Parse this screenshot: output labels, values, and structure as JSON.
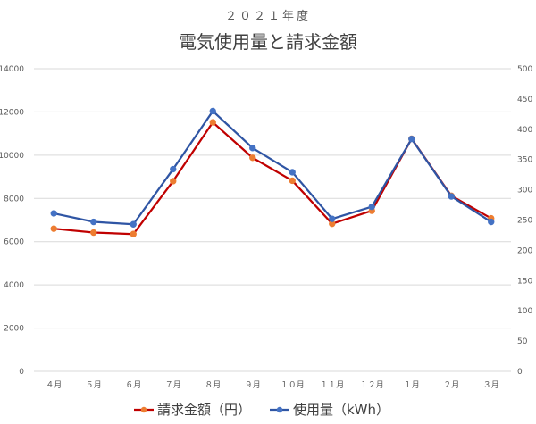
{
  "chart_data": {
    "type": "line",
    "subtitle": "２０２１年度",
    "title": "電気使用量と請求金額",
    "categories": [
      "４月",
      "５月",
      "６月",
      "７月",
      "８月",
      "９月",
      "１０月",
      "１１月",
      "１２月",
      "１月",
      "２月",
      "３月"
    ],
    "series": [
      {
        "name": "請求金額（円）",
        "axis": "left",
        "line_color": "#C00000",
        "marker_color": "#ED7D31",
        "values": [
          6600,
          6420,
          6350,
          8800,
          11520,
          9880,
          8820,
          6830,
          7430,
          10760,
          8120,
          7080
        ]
      },
      {
        "name": "使用量（kWh）",
        "axis": "right",
        "line_color": "#2F55A4",
        "marker_color": "#4472C4",
        "values": [
          261,
          247,
          243,
          334,
          430,
          369,
          329,
          252,
          272,
          384,
          289,
          247
        ]
      }
    ],
    "y_left": {
      "min": 0,
      "max": 14000,
      "step": 2000,
      "ticks": [
        "0",
        "2000",
        "4000",
        "6000",
        "8000",
        "10000",
        "12000",
        "14000"
      ]
    },
    "y_right": {
      "min": 0,
      "max": 500,
      "step": 50,
      "ticks": [
        "0",
        "50",
        "100",
        "150",
        "200",
        "250",
        "300",
        "350",
        "400",
        "450",
        "500"
      ]
    },
    "grid": true,
    "legend_position": "bottom",
    "colors": {
      "grid": "#D9D9D9",
      "text": "#595959"
    }
  }
}
